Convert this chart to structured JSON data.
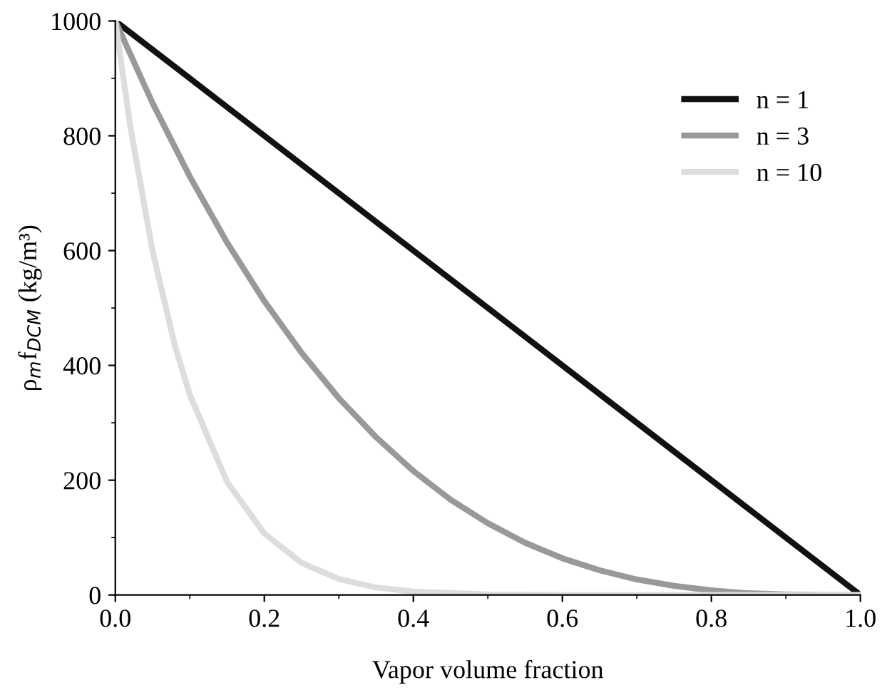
{
  "chart_data": {
    "type": "line",
    "xlabel": "Vapor volume fraction",
    "ylabel": "ρ$_{m}$f$_{DCM}$ (kg/m³)",
    "xlim": [
      0,
      1
    ],
    "ylim": [
      0,
      1000
    ],
    "xticks": [
      {
        "value": 0,
        "label": "0.0"
      },
      0.2,
      0.4,
      0.6,
      0.8,
      {
        "value": 1,
        "label": "1.0"
      }
    ],
    "yticks": [
      0,
      200,
      400,
      600,
      800,
      1000
    ],
    "grid": false,
    "legend": "top right",
    "marker": "none",
    "line_style": "solid",
    "series": [
      {
        "name": "n = 1",
        "color": "#111111",
        "x": [
          0,
          0.2,
          0.4,
          0.6,
          0.8,
          1.0
        ],
        "values": [
          1000,
          800,
          600,
          400,
          200,
          0
        ]
      },
      {
        "name": "n = 3",
        "color": "#999999",
        "x": [
          0,
          0.05,
          0.1,
          0.15,
          0.2,
          0.25,
          0.3,
          0.35,
          0.4,
          0.45,
          0.5,
          0.55,
          0.6,
          0.65,
          0.7,
          0.75,
          0.8,
          0.85,
          0.9,
          0.95,
          1.0
        ],
        "values": [
          1000,
          857,
          729,
          614,
          512,
          422,
          343,
          275,
          216,
          166,
          125,
          91,
          64,
          43,
          27,
          16,
          8,
          3,
          1,
          0,
          0
        ]
      },
      {
        "name": "n = 10",
        "color": "#dddddd",
        "x": [
          0,
          0.02,
          0.05,
          0.08,
          0.1,
          0.15,
          0.2,
          0.25,
          0.3,
          0.35,
          0.4,
          0.5,
          0.6,
          1.0
        ],
        "values": [
          1000,
          817,
          599,
          434,
          349,
          197,
          107,
          56,
          28,
          13,
          6,
          1,
          0,
          0
        ]
      }
    ]
  }
}
